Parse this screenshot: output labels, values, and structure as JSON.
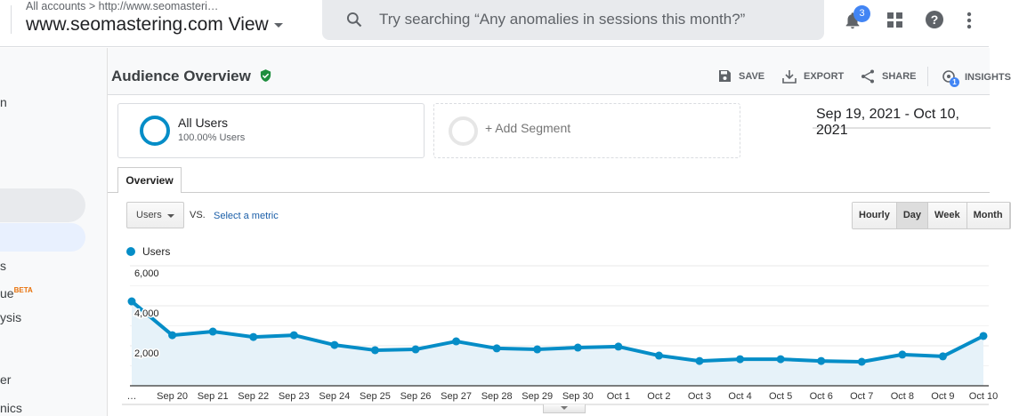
{
  "topbar": {
    "breadcrumb": "All accounts > http://www.seomasteri…",
    "view_name": "www.seomastering.com View",
    "search_placeholder": "Try searching “Any anomalies in sessions this month?”",
    "notification_count": "3"
  },
  "sidebar": {
    "fragments": [
      "n",
      "s",
      "ue",
      "ysis",
      "er",
      "nics"
    ],
    "beta_label": "BETA"
  },
  "header": {
    "title": "Audience Overview",
    "actions": {
      "save": "SAVE",
      "export": "EXPORT",
      "share": "SHARE",
      "insights": "INSIGHTS",
      "insights_count": "1"
    }
  },
  "segments": {
    "active": {
      "name": "All Users",
      "detail": "100.00% Users"
    },
    "add": "+ Add Segment"
  },
  "date_range": "Sep 19, 2021 - Oct 10, 2021",
  "tabs": [
    "Overview"
  ],
  "controls": {
    "metric": "Users",
    "vs": "VS.",
    "select_metric": "Select a metric",
    "granularity": [
      "Hourly",
      "Day",
      "Week",
      "Month"
    ],
    "granularity_selected": "Day"
  },
  "colors": {
    "series": "#058dc7",
    "fill": "#e6f2f9",
    "accent": "#4285f4",
    "verified": "#1e8e3e"
  },
  "chart_data": {
    "type": "area",
    "series": [
      {
        "name": "Users",
        "values": [
          4220,
          2530,
          2710,
          2440,
          2530,
          2040,
          1780,
          1820,
          2220,
          1870,
          1820,
          1910,
          1960,
          1510,
          1240,
          1330,
          1330,
          1240,
          1200,
          1560,
          1470,
          2490
        ]
      }
    ],
    "x_tick_labels": [
      "…",
      "Sep 20",
      "Sep 21",
      "Sep 22",
      "Sep 23",
      "Sep 24",
      "Sep 25",
      "Sep 26",
      "Sep 27",
      "Sep 28",
      "Sep 29",
      "Sep 30",
      "Oct 1",
      "Oct 2",
      "Oct 3",
      "Oct 4",
      "Oct 5",
      "Oct 6",
      "Oct 7",
      "Oct 8",
      "Oct 9",
      "Oct 10"
    ],
    "y_tick_labels": [
      "6,000",
      "4,000",
      "2,000"
    ],
    "ylim": [
      0,
      6000
    ],
    "grid": true,
    "legend": "top-left"
  }
}
